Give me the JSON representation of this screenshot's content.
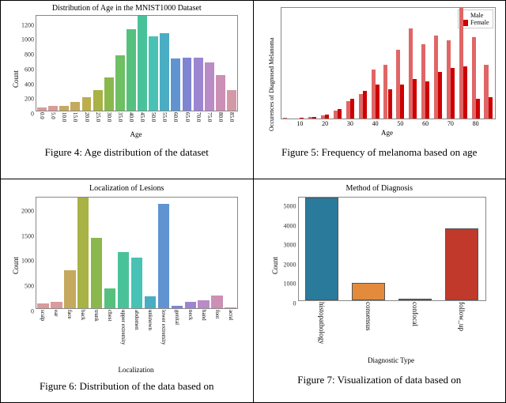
{
  "fig4": {
    "type": "bar",
    "title": "Distribution of Age in the MNIST1000 Dataset",
    "caption": "Figure 4: Age distribution of the dataset",
    "xlabel": "Age",
    "ylabel": "Count",
    "categories": [
      "0.0",
      "5.0",
      "10.0",
      "15.0",
      "20.0",
      "25.0",
      "30.0",
      "35.0",
      "40.0",
      "45.0",
      "50.0",
      "55.0",
      "60.0",
      "65.0",
      "70.0",
      "75.0",
      "80.0",
      "85.0"
    ],
    "values": [
      40,
      60,
      60,
      120,
      180,
      280,
      450,
      750,
      1100,
      1280,
      1000,
      1050,
      700,
      720,
      720,
      650,
      480,
      280
    ],
    "ymax": 1280,
    "yticks": [
      "0",
      "200",
      "400",
      "600",
      "800",
      "1000",
      "1200"
    ],
    "ytick_values": [
      0,
      200,
      400,
      600,
      800,
      1000,
      1200
    ],
    "colors": [
      "#d99b9b",
      "#d99b9b",
      "#c5a95e",
      "#c5a95e",
      "#bcae4d",
      "#a9b244",
      "#8bb84c",
      "#6fbf63",
      "#56c07e",
      "#49c29a",
      "#49c2b6",
      "#4aadc4",
      "#5f94d1",
      "#7f85d1",
      "#9c85d1",
      "#b98bc7",
      "#cc8fb5",
      "#d499a7"
    ],
    "background": "#ffffff",
    "font_family": "sans-serif"
  },
  "fig5": {
    "type": "grouped-bar",
    "caption": "Figure 5: Frequency of melanoma based on age",
    "xlabel": "Age",
    "ylabel": "Occurences of Diagnosed Melanoma",
    "legend": [
      {
        "label": "Male",
        "color": "#e06666"
      },
      {
        "label": "Female",
        "color": "#cc0000"
      }
    ],
    "x_categories": [
      5,
      10,
      15,
      20,
      25,
      30,
      35,
      40,
      45,
      50,
      55,
      60,
      65,
      70,
      75,
      80,
      85
    ],
    "xticks": [
      "10",
      "20",
      "30",
      "40",
      "50",
      "60",
      "70",
      "80"
    ],
    "xtick_values": [
      10,
      20,
      30,
      40,
      50,
      60,
      70,
      80
    ],
    "series": [
      {
        "name": "Male",
        "color": "#e06666",
        "values": [
          1,
          0,
          2,
          3,
          8,
          18,
          25,
          50,
          55,
          70,
          92,
          76,
          85,
          80,
          113,
          83,
          55
        ]
      },
      {
        "name": "Female",
        "color": "#cc0000",
        "values": [
          0,
          1,
          2,
          4,
          10,
          20,
          28,
          35,
          30,
          35,
          40,
          38,
          48,
          52,
          53,
          20,
          22
        ]
      }
    ],
    "ymax": 113,
    "background": "#ffffff"
  },
  "fig6": {
    "type": "bar",
    "title": "Localization of Lesions",
    "caption": "Figure 6: Distribution of the data based on",
    "xlabel": "Localization",
    "ylabel": "Count",
    "categories": [
      "scalp",
      "ear",
      "face",
      "back",
      "trunk",
      "chest",
      "upper extremity",
      "abdomen",
      "unknown",
      "lower extremity",
      "genital",
      "neck",
      "hand",
      "foot",
      "acral"
    ],
    "values": [
      100,
      120,
      750,
      2200,
      1400,
      400,
      1120,
      1000,
      230,
      2080,
      50,
      120,
      150,
      250,
      20
    ],
    "ymax": 2200,
    "yticks": [
      "0",
      "500",
      "1000",
      "1500",
      "2000"
    ],
    "ytick_values": [
      0,
      500,
      1000,
      1500,
      2000
    ],
    "colors": [
      "#d99b9b",
      "#d99b9b",
      "#c5a95e",
      "#a9b244",
      "#8bb84c",
      "#56c07e",
      "#49c29a",
      "#49c2b6",
      "#4aadc4",
      "#5f94d1",
      "#7f85d1",
      "#9c85d1",
      "#b98bc7",
      "#cc8fb5",
      "#d499a7"
    ],
    "background": "#ffffff"
  },
  "fig7": {
    "type": "bar",
    "title": "Method of Diagnosis",
    "caption": "Figure 7: Visualization of data based on",
    "xlabel": "Diagnostic Type",
    "ylabel": "Count",
    "categories": [
      "histopathology",
      "consensus",
      "confocal",
      "follow_up"
    ],
    "values": [
      5300,
      900,
      70,
      3700
    ],
    "ymax": 5300,
    "yticks": [
      "0",
      "1000",
      "2000",
      "3000",
      "4000",
      "5000"
    ],
    "ytick_values": [
      0,
      1000,
      2000,
      3000,
      4000,
      5000
    ],
    "colors": [
      "#2a7a9c",
      "#e38b3c",
      "#4eab5a",
      "#c0392b"
    ],
    "background": "#ffffff"
  }
}
